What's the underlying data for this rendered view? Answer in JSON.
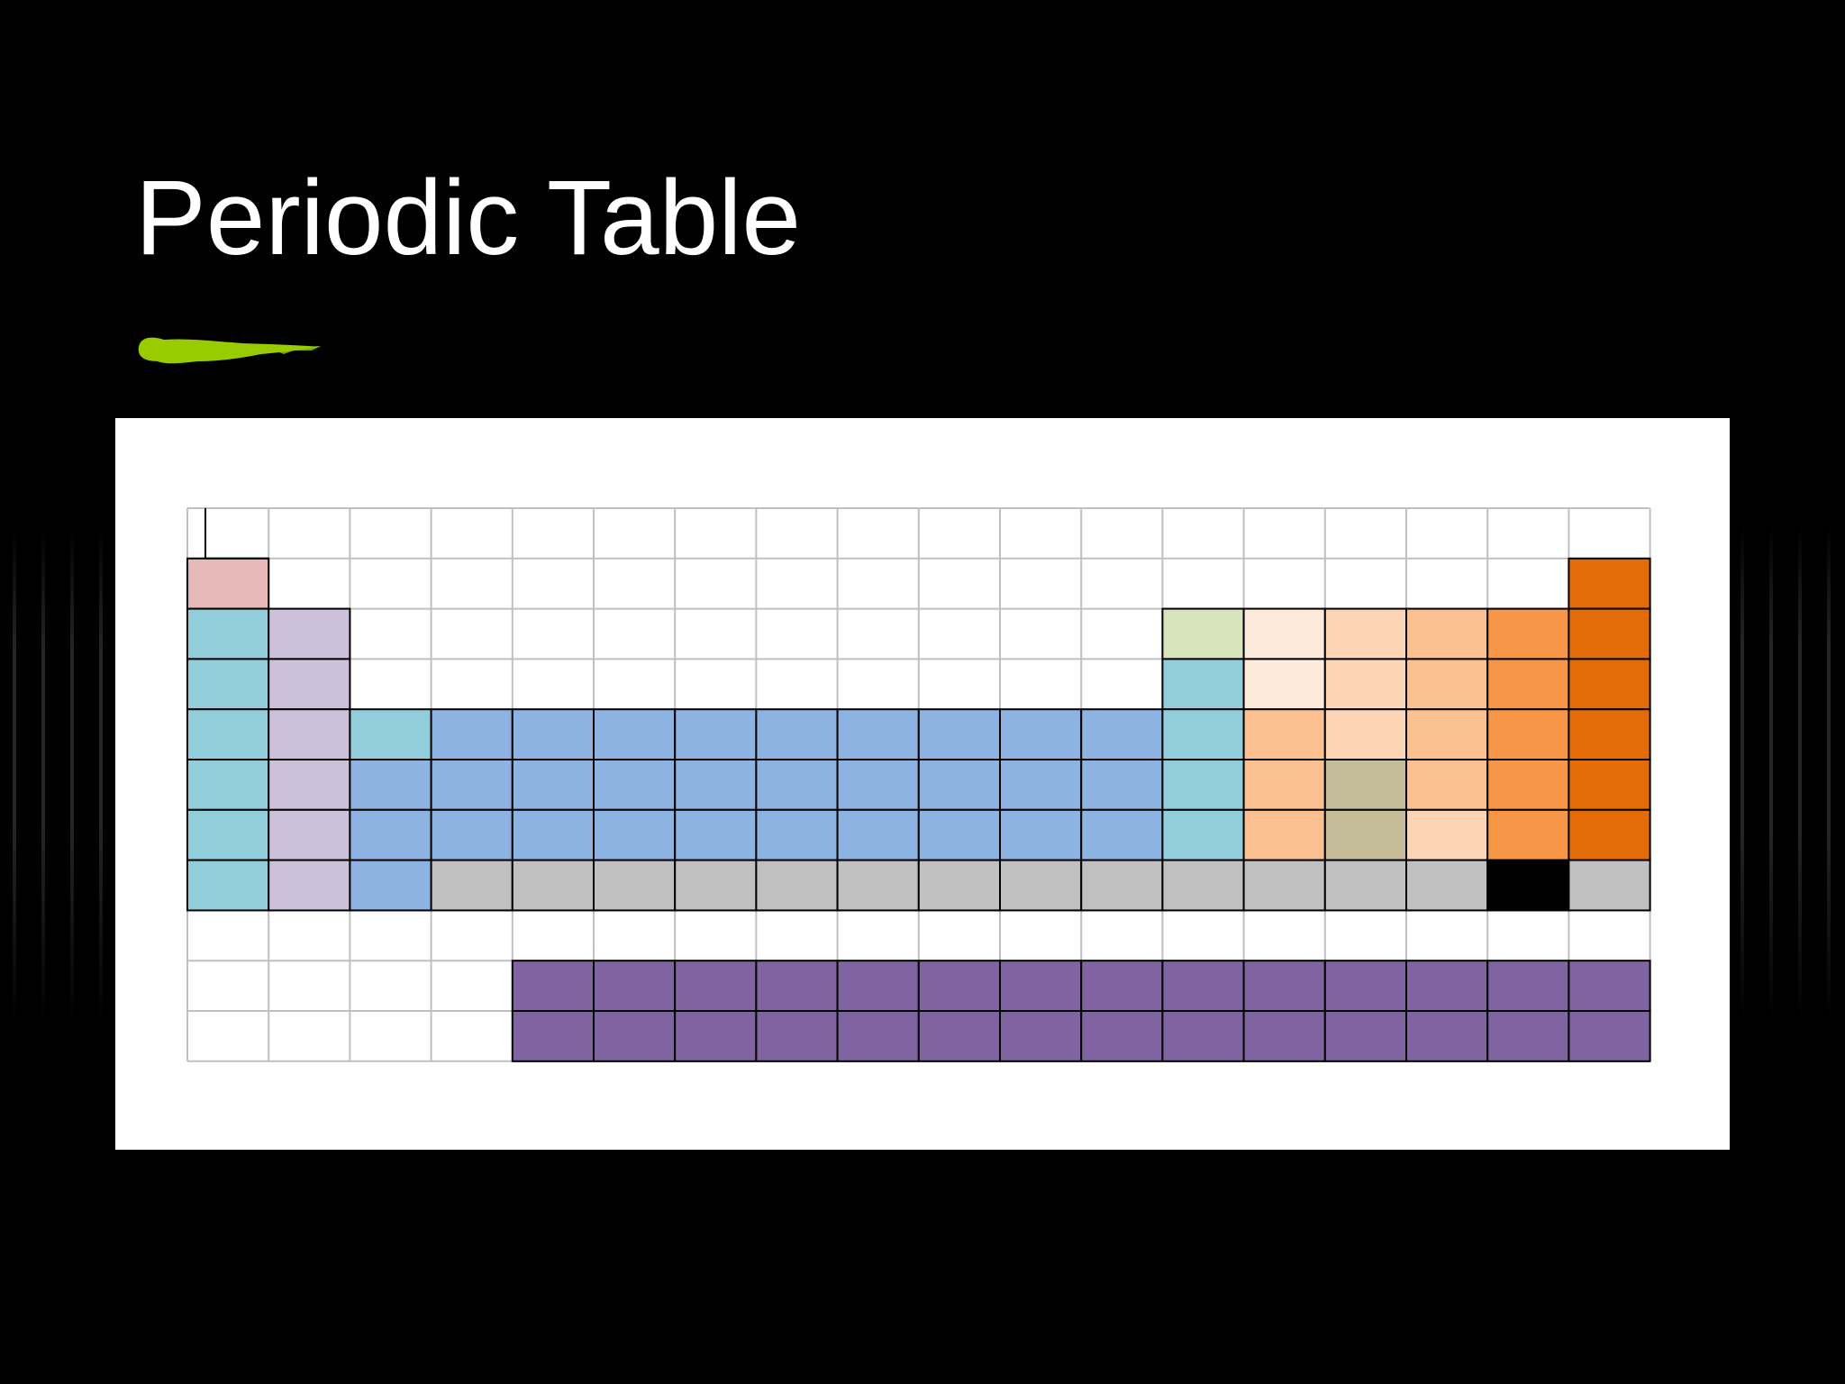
{
  "slide": {
    "title": "Periodic Table"
  },
  "colors": {
    "background": "#000000",
    "title_text": "#ffffff",
    "accent_stroke": "#99cc00",
    "panel": "#ffffff",
    "grid_line": "#c0c0c0",
    "cell_border": "#000000"
  },
  "table": {
    "columns": 18,
    "rows": 11,
    "palette": {
      "h": "#e6b8b8",
      "alk": "#92cddc",
      "ae": "#ccc0da",
      "tm": "#8db3e2",
      "met": "#92cddc",
      "bor": "#d7e4bc",
      "nm1": "#fdeada",
      "nm2": "#fbd5b5",
      "nm3": "#fac090",
      "hal": "#f79646",
      "ng": "#e36c09",
      "md": "#c4bd97",
      "un": "#c0c0c0",
      "blk": "#000000",
      "lan": "#8064a2"
    },
    "grid": [
      [
        "",
        "",
        "",
        "",
        "",
        "",
        "",
        "",
        "",
        "",
        "",
        "",
        "",
        "",
        "",
        "",
        "",
        ""
      ],
      [
        "h",
        "",
        "",
        "",
        "",
        "",
        "",
        "",
        "",
        "",
        "",
        "",
        "",
        "",
        "",
        "",
        "",
        "ng"
      ],
      [
        "alk",
        "ae",
        "",
        "",
        "",
        "",
        "",
        "",
        "",
        "",
        "",
        "",
        "bor",
        "nm1",
        "nm2",
        "nm3",
        "hal",
        "ng"
      ],
      [
        "alk",
        "ae",
        "",
        "",
        "",
        "",
        "",
        "",
        "",
        "",
        "",
        "",
        "met",
        "nm1",
        "nm2",
        "nm3",
        "hal",
        "ng"
      ],
      [
        "alk",
        "ae",
        "met",
        "tm",
        "tm",
        "tm",
        "tm",
        "tm",
        "tm",
        "tm",
        "tm",
        "tm",
        "met",
        "nm3",
        "nm2",
        "nm3",
        "hal",
        "ng"
      ],
      [
        "alk",
        "ae",
        "tm",
        "tm",
        "tm",
        "tm",
        "tm",
        "tm",
        "tm",
        "tm",
        "tm",
        "tm",
        "met",
        "nm3",
        "md",
        "nm3",
        "hal",
        "ng"
      ],
      [
        "alk",
        "ae",
        "tm",
        "tm",
        "tm",
        "tm",
        "tm",
        "tm",
        "tm",
        "tm",
        "tm",
        "tm",
        "met",
        "nm3",
        "md",
        "nm2",
        "hal",
        "ng"
      ],
      [
        "alk",
        "ae",
        "tm",
        "un",
        "un",
        "un",
        "un",
        "un",
        "un",
        "un",
        "un",
        "un",
        "un",
        "un",
        "un",
        "un",
        "blk",
        "un"
      ],
      [
        "",
        "",
        "",
        "",
        "",
        "",
        "",
        "",
        "",
        "",
        "",
        "",
        "",
        "",
        "",
        "",
        "",
        ""
      ],
      [
        "",
        "",
        "",
        "",
        "lan",
        "lan",
        "lan",
        "lan",
        "lan",
        "lan",
        "lan",
        "lan",
        "lan",
        "lan",
        "lan",
        "lan",
        "lan",
        "lan"
      ],
      [
        "",
        "",
        "",
        "",
        "lan",
        "lan",
        "lan",
        "lan",
        "lan",
        "lan",
        "lan",
        "lan",
        "lan",
        "lan",
        "lan",
        "lan",
        "lan",
        "lan"
      ]
    ]
  }
}
